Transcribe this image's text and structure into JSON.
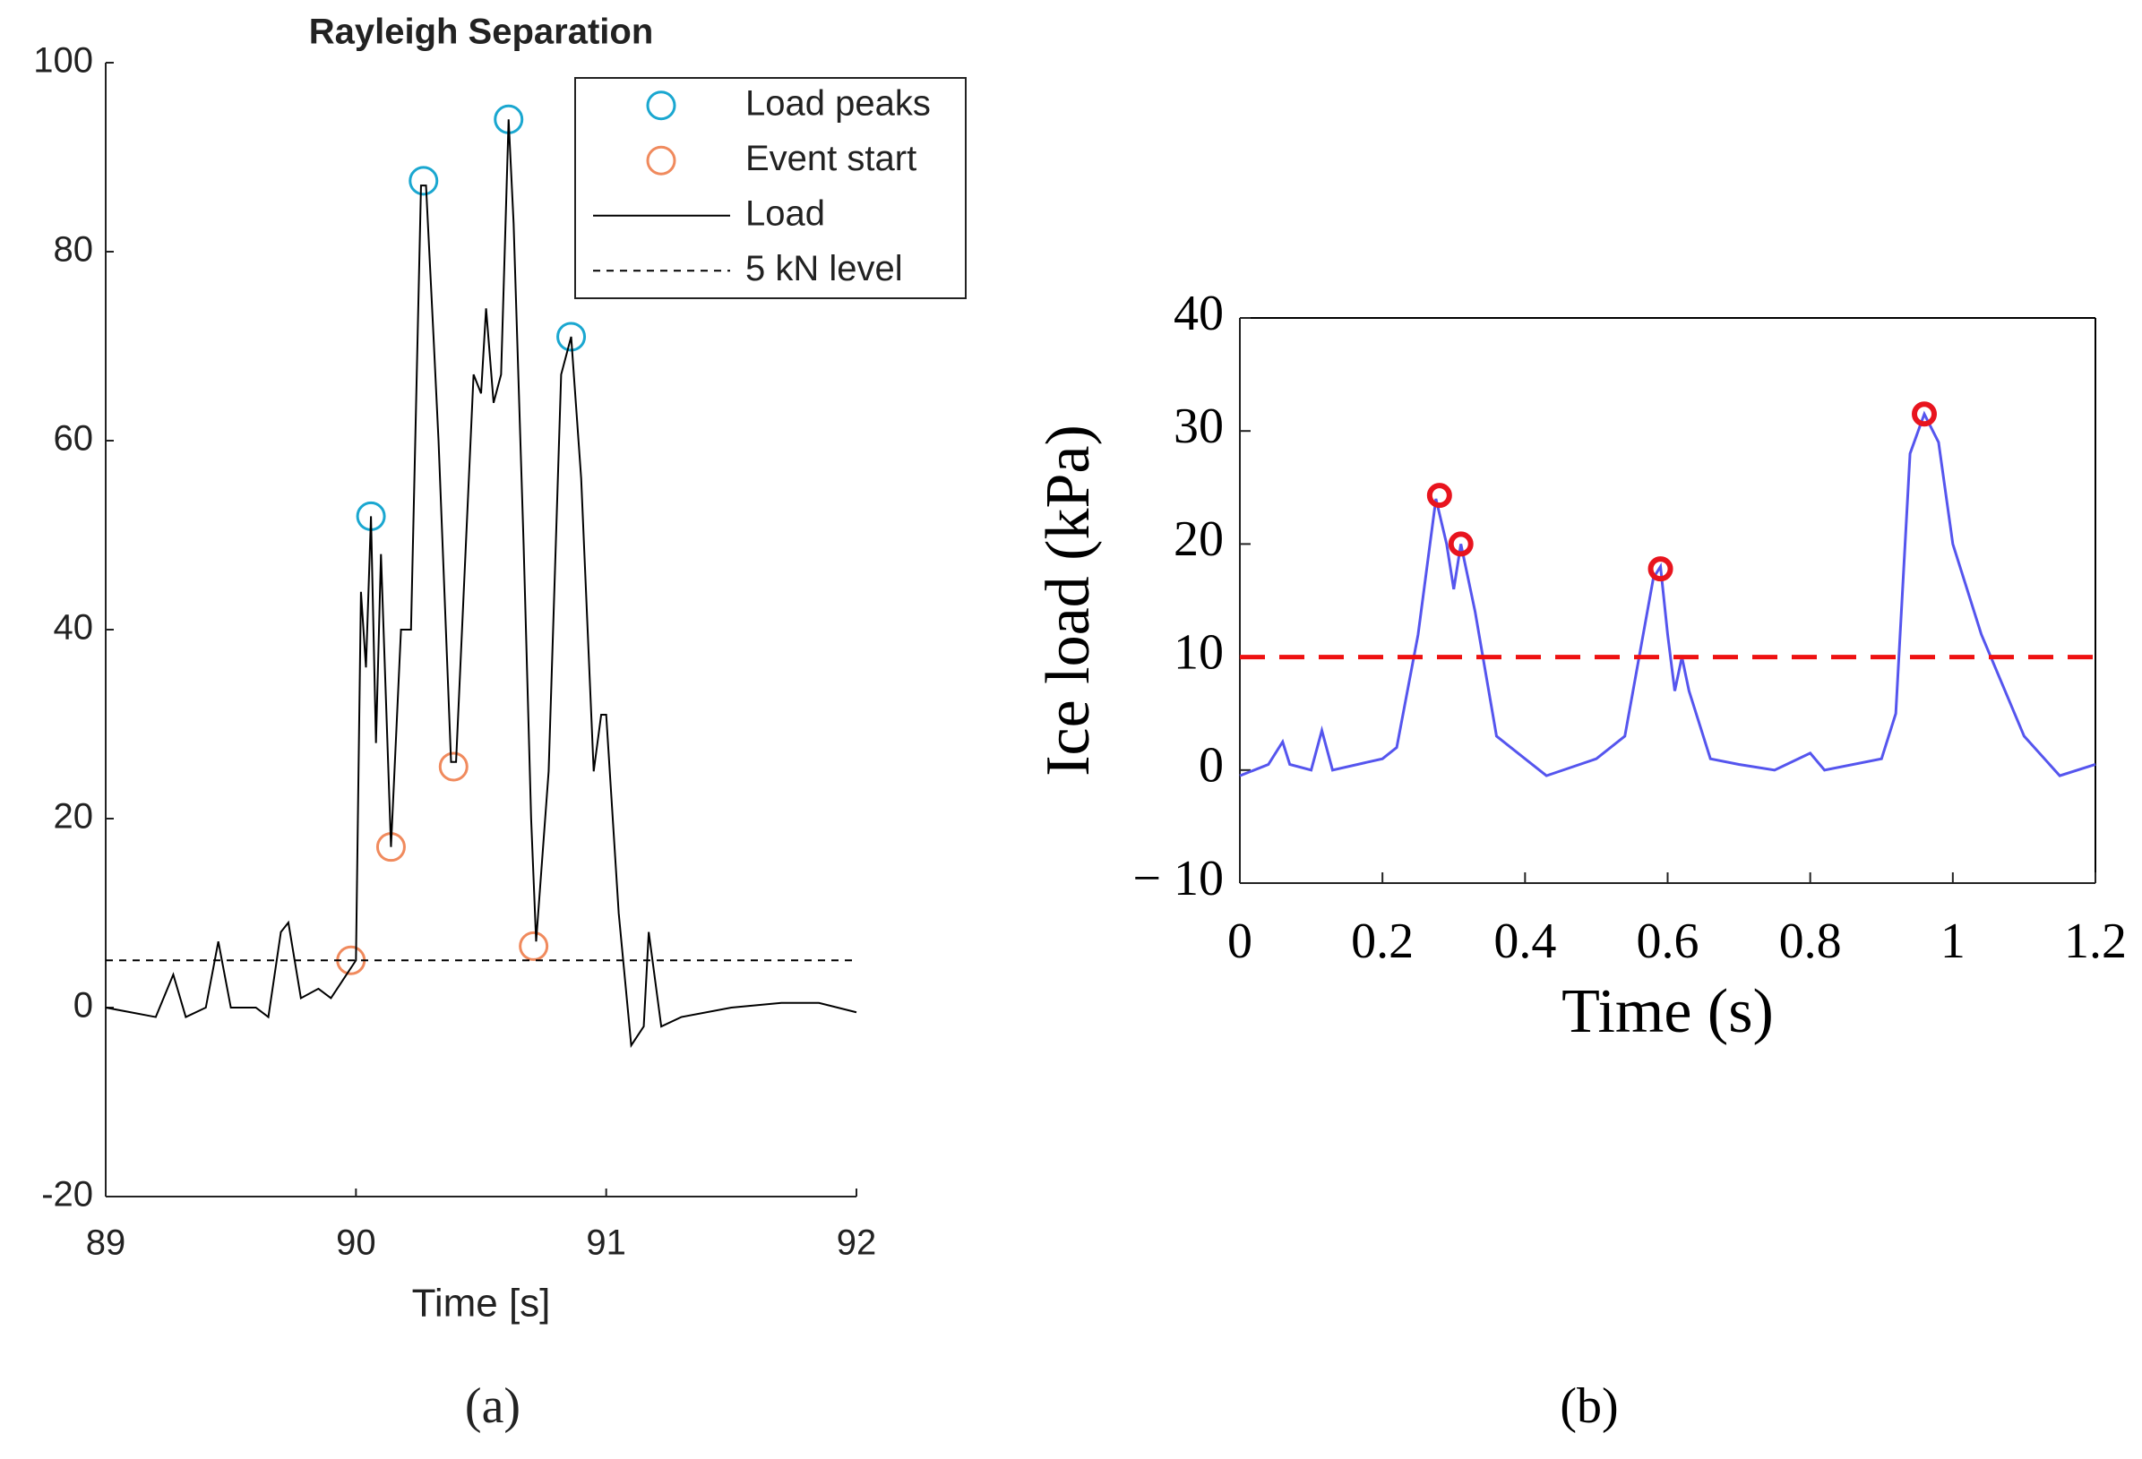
{
  "chart_data": [
    {
      "type": "line",
      "title": "Rayleigh Separation",
      "xlabel": "Time [s]",
      "caption": "(a)",
      "xlim": [
        89,
        92
      ],
      "xticks": [
        89,
        90,
        91,
        92
      ],
      "ylim": [
        -20,
        100
      ],
      "yticks": [
        -20,
        0,
        20,
        40,
        60,
        80,
        100
      ],
      "legend": "upper right",
      "series": [
        {
          "name": "Load peaks",
          "type": "scatter",
          "color": "#1aa7d0",
          "x": [
            90.06,
            90.27,
            90.61,
            90.86
          ],
          "values": [
            52,
            87.5,
            94,
            71
          ]
        },
        {
          "name": "Event start",
          "type": "scatter",
          "color": "#f08a5d",
          "x": [
            89.98,
            90.14,
            90.39,
            90.71
          ],
          "values": [
            5,
            17,
            25.5,
            6.5
          ]
        },
        {
          "name": "Load",
          "type": "line",
          "color": "#000000",
          "x": [
            89.0,
            89.1,
            89.2,
            89.27,
            89.32,
            89.4,
            89.45,
            89.5,
            89.6,
            89.65,
            89.7,
            89.73,
            89.78,
            89.85,
            89.9,
            89.95,
            90.0,
            90.02,
            90.04,
            90.06,
            90.08,
            90.1,
            90.14,
            90.18,
            90.22,
            90.26,
            90.28,
            90.31,
            90.33,
            90.38,
            90.4,
            90.47,
            90.5,
            90.52,
            90.55,
            90.58,
            90.61,
            90.63,
            90.67,
            90.7,
            90.72,
            90.77,
            90.82,
            90.86,
            90.9,
            90.95,
            90.98,
            91.0,
            91.05,
            91.1,
            91.15,
            91.17,
            91.22,
            91.3,
            91.5,
            91.7,
            91.85,
            92.0
          ],
          "values": [
            0,
            -0.5,
            -1,
            3.5,
            -1,
            0,
            7,
            0,
            0,
            -1,
            8,
            9,
            1,
            2,
            1,
            3,
            5,
            44,
            36,
            52,
            28,
            48,
            17,
            40,
            40,
            87,
            87,
            71,
            60,
            26,
            26,
            67,
            65,
            74,
            64,
            67,
            94,
            83,
            49,
            20,
            7,
            25,
            67,
            71,
            56,
            25,
            31,
            31,
            10,
            -4,
            -2,
            8,
            -2,
            -1,
            0,
            0.5,
            0.5,
            -0.5
          ]
        },
        {
          "name": "5 kN level",
          "type": "line",
          "dash": true,
          "color": "#000000",
          "x": [
            89,
            92
          ],
          "values": [
            5,
            5
          ]
        }
      ]
    },
    {
      "type": "line",
      "xlabel": "Time (s)",
      "ylabel": "Ice load (kPa)",
      "caption": "(b)",
      "box": true,
      "xlim": [
        0,
        1.2
      ],
      "xticks": [
        0,
        0.2,
        0.4,
        0.6,
        0.8,
        1,
        1.2
      ],
      "ylim": [
        -10,
        40
      ],
      "yticks": [
        {
          "value": -10,
          "label": "− 10"
        },
        0,
        10,
        20,
        30,
        40
      ],
      "series": [
        {
          "type": "line",
          "color": "#5555ee",
          "x": [
            0,
            0.04,
            0.06,
            0.07,
            0.1,
            0.115,
            0.13,
            0.2,
            0.22,
            0.25,
            0.275,
            0.29,
            0.3,
            0.31,
            0.33,
            0.36,
            0.4,
            0.43,
            0.5,
            0.54,
            0.58,
            0.59,
            0.6,
            0.61,
            0.62,
            0.63,
            0.66,
            0.7,
            0.75,
            0.8,
            0.82,
            0.9,
            0.92,
            0.94,
            0.96,
            0.98,
            1.0,
            1.04,
            1.1,
            1.15,
            1.2
          ],
          "values": [
            -0.5,
            0.5,
            2.5,
            0.5,
            0,
            3.5,
            0,
            1,
            2,
            12,
            24,
            20,
            16,
            20,
            14,
            3,
            1,
            -0.5,
            1,
            3,
            17,
            18,
            12,
            7,
            10,
            7,
            1,
            0.5,
            0,
            1.5,
            0,
            1,
            5,
            28,
            31.5,
            29,
            20,
            12,
            3,
            -0.5,
            0.5
          ]
        },
        {
          "type": "line",
          "dash": true,
          "color": "#ee1111",
          "x": [
            0,
            1.2
          ],
          "values": [
            10,
            10
          ]
        },
        {
          "type": "scatter",
          "color": "#e8141e",
          "x": [
            0.28,
            0.31,
            0.59,
            0.96
          ],
          "values": [
            24.3,
            20,
            17.8,
            31.5
          ]
        }
      ]
    }
  ]
}
